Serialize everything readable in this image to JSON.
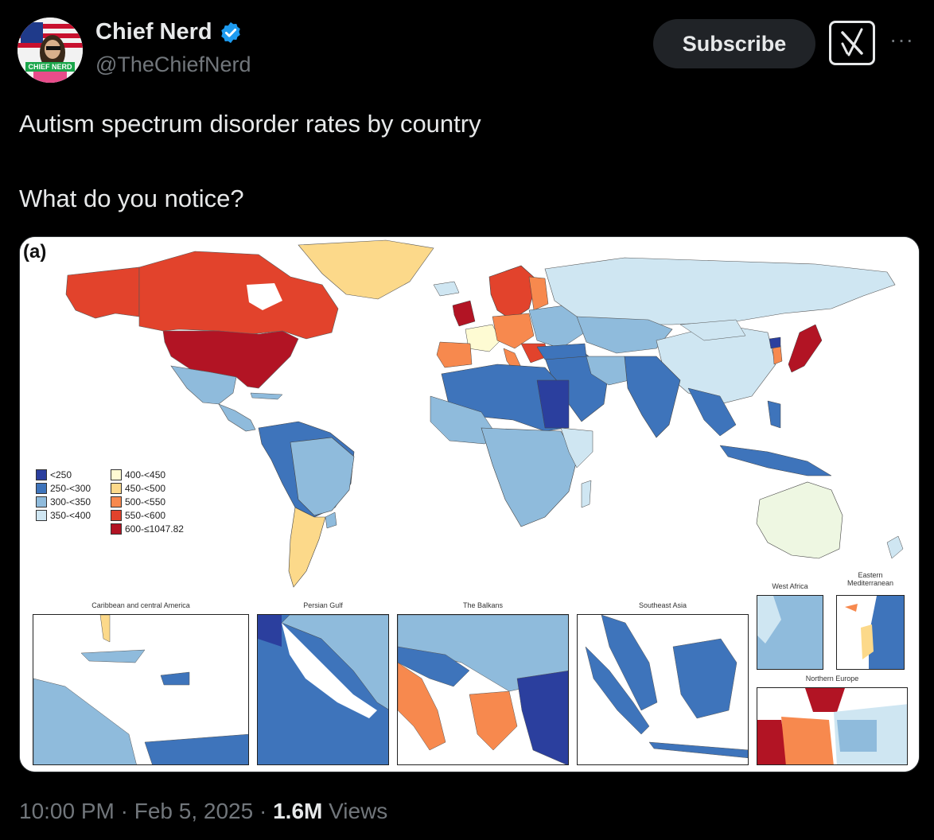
{
  "tweet": {
    "author_name": "Chief Nerd",
    "author_handle": "@TheChiefNerd",
    "subscribe_label": "Subscribe",
    "more_label": "···",
    "text_line1": "Autism spectrum disorder rates by country",
    "text_line2": "What do you notice?",
    "time": "10:00 PM",
    "date": "Feb 5, 2025",
    "views_count": "1.6M",
    "views_label": "Views",
    "dot": "·",
    "avatar_text": "CHIEF NERD"
  },
  "map": {
    "panel_label": "(a)",
    "legend": [
      {
        "label": "<250",
        "color": "#2b3f9e"
      },
      {
        "label": "250-<300",
        "color": "#3e74bb"
      },
      {
        "label": "300-<350",
        "color": "#8fbbdc"
      },
      {
        "label": "350-<400",
        "color": "#cfe6f2"
      },
      {
        "label": "400-<450",
        "color": "#fefbd3"
      },
      {
        "label": "450-<500",
        "color": "#fcd98a"
      },
      {
        "label": "500-<550",
        "color": "#f7894e"
      },
      {
        "label": "550-<600",
        "color": "#e2432c"
      },
      {
        "label": "600-≤1047.82",
        "color": "#b21424"
      }
    ],
    "insets": {
      "caribbean": "Caribbean and central America",
      "persian_gulf": "Persian Gulf",
      "balkans": "The Balkans",
      "southeast_asia": "Southeast Asia",
      "west_africa": "West Africa",
      "eastern_med": "Eastern Mediterranean",
      "northern_europe": "Northern Europe"
    }
  },
  "colors": {
    "background": "#000000",
    "verified": "#1d9bf0",
    "muted": "#71767b"
  }
}
